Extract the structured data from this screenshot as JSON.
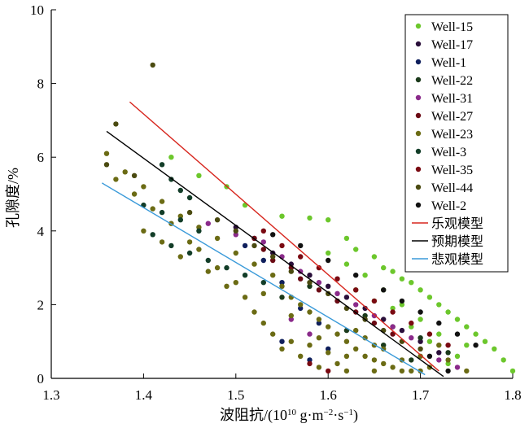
{
  "chart_data": {
    "type": "scatter",
    "xlabel_main": "波阻抗/(10",
    "xlabel_exp": "10",
    "xlabel_rest": " g·m",
    "xlabel_exp2": "−2",
    "xlabel_rest2": "·s",
    "xlabel_exp3": "−1",
    "xlabel_end": ")",
    "ylabel": "孔隙度/%",
    "xlim": [
      1.3,
      1.8
    ],
    "ylim": [
      0,
      10
    ],
    "x_ticks": [
      "1.3",
      "1.4",
      "1.5",
      "1.6",
      "1.7",
      "1.8"
    ],
    "y_ticks": [
      "0",
      "2",
      "4",
      "6",
      "8",
      "10"
    ],
    "legend_position": "top-right",
    "series": [
      {
        "name": "Well-15",
        "color": "#6cc72c",
        "points": [
          [
            1.43,
            6.0
          ],
          [
            1.46,
            5.5
          ],
          [
            1.49,
            5.2
          ],
          [
            1.51,
            4.7
          ],
          [
            1.55,
            4.4
          ],
          [
            1.58,
            4.35
          ],
          [
            1.6,
            4.3
          ],
          [
            1.62,
            3.8
          ],
          [
            1.63,
            3.5
          ],
          [
            1.65,
            3.3
          ],
          [
            1.66,
            3.0
          ],
          [
            1.67,
            2.9
          ],
          [
            1.68,
            2.7
          ],
          [
            1.69,
            2.6
          ],
          [
            1.7,
            2.4
          ],
          [
            1.71,
            2.2
          ],
          [
            1.72,
            2.0
          ],
          [
            1.73,
            1.8
          ],
          [
            1.74,
            1.6
          ],
          [
            1.75,
            1.4
          ],
          [
            1.76,
            1.2
          ],
          [
            1.77,
            1.0
          ],
          [
            1.78,
            0.8
          ],
          [
            1.79,
            0.5
          ],
          [
            1.8,
            0.2
          ],
          [
            1.74,
            0.6
          ],
          [
            1.72,
            1.2
          ],
          [
            1.7,
            1.6
          ],
          [
            1.68,
            2.0
          ],
          [
            1.66,
            2.4
          ],
          [
            1.64,
            2.8
          ],
          [
            1.62,
            3.1
          ],
          [
            1.6,
            3.4
          ],
          [
            1.71,
            1.0
          ],
          [
            1.73,
            0.4
          ],
          [
            1.75,
            0.9
          ],
          [
            1.69,
            1.4
          ],
          [
            1.67,
            1.9
          ],
          [
            1.65,
            2.1
          ],
          [
            1.63,
            2.4
          ]
        ]
      },
      {
        "name": "Well-17",
        "color": "#2a0f3a",
        "points": [
          [
            1.5,
            4.1
          ],
          [
            1.52,
            3.8
          ],
          [
            1.54,
            3.4
          ],
          [
            1.56,
            3.1
          ],
          [
            1.58,
            2.8
          ],
          [
            1.6,
            2.5
          ],
          [
            1.62,
            2.2
          ],
          [
            1.64,
            1.9
          ],
          [
            1.66,
            1.6
          ],
          [
            1.68,
            1.3
          ],
          [
            1.7,
            1.0
          ],
          [
            1.72,
            0.7
          ]
        ]
      },
      {
        "name": "Well-1",
        "color": "#0f1f5c",
        "points": [
          [
            1.51,
            3.6
          ],
          [
            1.53,
            3.2
          ],
          [
            1.55,
            2.6
          ],
          [
            1.57,
            1.9
          ],
          [
            1.59,
            1.5
          ],
          [
            1.55,
            1.0
          ],
          [
            1.58,
            0.5
          ],
          [
            1.6,
            0.8
          ]
        ]
      },
      {
        "name": "Well-22",
        "color": "#1b3a1b",
        "points": [
          [
            1.55,
            2.2
          ],
          [
            1.58,
            2.5
          ],
          [
            1.61,
            2.1
          ],
          [
            1.64,
            1.7
          ],
          [
            1.67,
            1.4
          ],
          [
            1.7,
            1.1
          ],
          [
            1.73,
            0.7
          ],
          [
            1.62,
            1.3
          ],
          [
            1.66,
            0.9
          ],
          [
            1.69,
            0.5
          ]
        ]
      },
      {
        "name": "Well-31",
        "color": "#8a2a8a",
        "points": [
          [
            1.47,
            4.2
          ],
          [
            1.5,
            3.9
          ],
          [
            1.53,
            3.7
          ],
          [
            1.55,
            3.3
          ],
          [
            1.57,
            2.9
          ],
          [
            1.59,
            2.6
          ],
          [
            1.61,
            2.3
          ],
          [
            1.63,
            2.0
          ],
          [
            1.65,
            1.7
          ],
          [
            1.67,
            1.4
          ],
          [
            1.69,
            1.1
          ],
          [
            1.72,
            0.5
          ],
          [
            1.74,
            0.3
          ],
          [
            1.56,
            1.6
          ],
          [
            1.58,
            1.2
          ]
        ]
      },
      {
        "name": "Well-27",
        "color": "#6b0a14",
        "points": [
          [
            1.52,
            3.8
          ],
          [
            1.53,
            3.5
          ],
          [
            1.54,
            3.2
          ],
          [
            1.56,
            3.0
          ],
          [
            1.57,
            2.7
          ],
          [
            1.59,
            2.4
          ],
          [
            1.61,
            2.1
          ],
          [
            1.63,
            1.8
          ],
          [
            1.65,
            1.5
          ],
          [
            1.67,
            1.2
          ]
        ]
      },
      {
        "name": "Well-23",
        "color": "#6b6b14",
        "points": [
          [
            1.36,
            6.1
          ],
          [
            1.38,
            5.6
          ],
          [
            1.4,
            5.2
          ],
          [
            1.42,
            4.8
          ],
          [
            1.44,
            4.4
          ],
          [
            1.46,
            4.1
          ],
          [
            1.48,
            3.8
          ],
          [
            1.5,
            3.4
          ],
          [
            1.52,
            3.1
          ],
          [
            1.54,
            2.8
          ],
          [
            1.55,
            2.5
          ],
          [
            1.56,
            2.2
          ],
          [
            1.57,
            2.0
          ],
          [
            1.58,
            1.8
          ],
          [
            1.59,
            1.6
          ],
          [
            1.6,
            1.4
          ],
          [
            1.61,
            1.2
          ],
          [
            1.62,
            1.0
          ],
          [
            1.63,
            0.8
          ],
          [
            1.64,
            0.6
          ],
          [
            1.65,
            0.5
          ],
          [
            1.66,
            0.4
          ],
          [
            1.67,
            0.3
          ],
          [
            1.68,
            0.2
          ],
          [
            1.69,
            0.2
          ],
          [
            1.7,
            0.2
          ],
          [
            1.71,
            0.3
          ],
          [
            1.56,
            1.0
          ],
          [
            1.57,
            0.6
          ],
          [
            1.58,
            0.9
          ],
          [
            1.59,
            0.3
          ],
          [
            1.6,
            0.7
          ],
          [
            1.61,
            0.4
          ],
          [
            1.62,
            0.2
          ],
          [
            1.63,
            1.3
          ],
          [
            1.64,
            1.1
          ],
          [
            1.65,
            0.9
          ],
          [
            1.66,
            0.8
          ],
          [
            1.53,
            1.5
          ],
          [
            1.54,
            1.2
          ],
          [
            1.55,
            0.8
          ],
          [
            1.51,
            2.2
          ],
          [
            1.52,
            1.8
          ],
          [
            1.49,
            2.5
          ],
          [
            1.48,
            3.0
          ],
          [
            1.46,
            3.5
          ],
          [
            1.45,
            3.7
          ],
          [
            1.43,
            4.2
          ],
          [
            1.41,
            4.6
          ],
          [
            1.39,
            5.0
          ],
          [
            1.37,
            5.4
          ],
          [
            1.4,
            4.0
          ],
          [
            1.42,
            3.7
          ],
          [
            1.44,
            3.3
          ],
          [
            1.47,
            2.9
          ],
          [
            1.5,
            2.6
          ],
          [
            1.53,
            2.3
          ],
          [
            1.56,
            1.7
          ],
          [
            1.59,
            1.1
          ],
          [
            1.62,
            0.6
          ],
          [
            1.65,
            0.2
          ],
          [
            1.68,
            0.5
          ],
          [
            1.7,
            0.6
          ],
          [
            1.72,
            0.9
          ],
          [
            1.73,
            0.5
          ],
          [
            1.75,
            0.2
          ]
        ]
      },
      {
        "name": "Well-3",
        "color": "#123d28",
        "points": [
          [
            1.42,
            5.8
          ],
          [
            1.43,
            5.4
          ],
          [
            1.44,
            5.1
          ],
          [
            1.45,
            4.9
          ],
          [
            1.4,
            4.7
          ],
          [
            1.42,
            4.5
          ],
          [
            1.44,
            4.3
          ],
          [
            1.46,
            4.0
          ],
          [
            1.41,
            3.9
          ],
          [
            1.43,
            3.6
          ],
          [
            1.45,
            3.4
          ],
          [
            1.47,
            3.2
          ],
          [
            1.49,
            3.0
          ],
          [
            1.51,
            2.8
          ],
          [
            1.53,
            2.6
          ]
        ]
      },
      {
        "name": "Well-35",
        "color": "#7a0a12",
        "points": [
          [
            1.53,
            4.0
          ],
          [
            1.55,
            3.6
          ],
          [
            1.57,
            3.3
          ],
          [
            1.59,
            3.0
          ],
          [
            1.61,
            2.7
          ],
          [
            1.63,
            2.4
          ],
          [
            1.65,
            2.1
          ],
          [
            1.67,
            1.8
          ],
          [
            1.69,
            1.5
          ],
          [
            1.71,
            1.2
          ],
          [
            1.73,
            0.9
          ],
          [
            1.58,
            0.4
          ],
          [
            1.6,
            0.2
          ]
        ]
      },
      {
        "name": "Well-44",
        "color": "#4a4a10",
        "points": [
          [
            1.41,
            8.5
          ],
          [
            1.37,
            6.9
          ],
          [
            1.36,
            5.8
          ],
          [
            1.39,
            5.5
          ],
          [
            1.45,
            4.5
          ],
          [
            1.48,
            4.3
          ],
          [
            1.5,
            4.0
          ],
          [
            1.52,
            3.6
          ],
          [
            1.54,
            3.3
          ],
          [
            1.56,
            2.9
          ],
          [
            1.58,
            2.6
          ],
          [
            1.6,
            2.3
          ],
          [
            1.62,
            1.9
          ],
          [
            1.64,
            1.6
          ],
          [
            1.66,
            1.3
          ],
          [
            1.68,
            1.0
          ],
          [
            1.7,
            0.8
          ]
        ]
      },
      {
        "name": "Well-2",
        "color": "#111111",
        "points": [
          [
            1.54,
            3.9
          ],
          [
            1.57,
            3.6
          ],
          [
            1.6,
            3.2
          ],
          [
            1.63,
            2.8
          ],
          [
            1.66,
            2.4
          ],
          [
            1.68,
            2.1
          ],
          [
            1.7,
            1.8
          ],
          [
            1.72,
            1.5
          ],
          [
            1.74,
            1.2
          ],
          [
            1.76,
            0.9
          ],
          [
            1.71,
            0.6
          ],
          [
            1.73,
            0.2
          ]
        ]
      }
    ],
    "lines": [
      {
        "name": "乐观模型",
        "color": "#d7261e",
        "x": [
          1.385,
          1.72
        ],
        "y": [
          7.5,
          0.2
        ]
      },
      {
        "name": "预期模型",
        "color": "#000000",
        "x": [
          1.36,
          1.725
        ],
        "y": [
          6.7,
          0.05
        ]
      },
      {
        "name": "悲观模型",
        "color": "#3a9ad9",
        "x": [
          1.355,
          1.705
        ],
        "y": [
          5.3,
          0.1
        ]
      }
    ]
  }
}
